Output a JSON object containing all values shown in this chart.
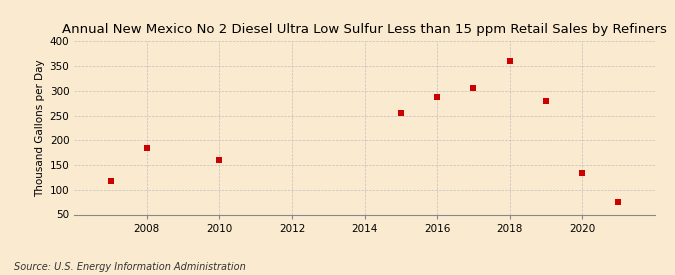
{
  "title": "Annual New Mexico No 2 Diesel Ultra Low Sulfur Less than 15 ppm Retail Sales by Refiners",
  "ylabel": "Thousand Gallons per Day",
  "source": "Source: U.S. Energy Information Administration",
  "x_data": [
    2007,
    2008,
    2010,
    2015,
    2016,
    2017,
    2018,
    2019,
    2020,
    2021
  ],
  "y_data": [
    117,
    185,
    160,
    255,
    288,
    305,
    360,
    280,
    133,
    75
  ],
  "marker_color": "#cc0000",
  "marker": "s",
  "marker_size": 4,
  "xlim": [
    2006.0,
    2022.0
  ],
  "ylim": [
    50,
    400
  ],
  "xticks": [
    2008,
    2010,
    2012,
    2014,
    2016,
    2018,
    2020
  ],
  "yticks": [
    50,
    100,
    150,
    200,
    250,
    300,
    350,
    400
  ],
  "background_color": "#faebd0",
  "grid_color": "#bbbbbb",
  "title_fontsize": 9.5,
  "label_fontsize": 7.5,
  "source_fontsize": 7.0
}
